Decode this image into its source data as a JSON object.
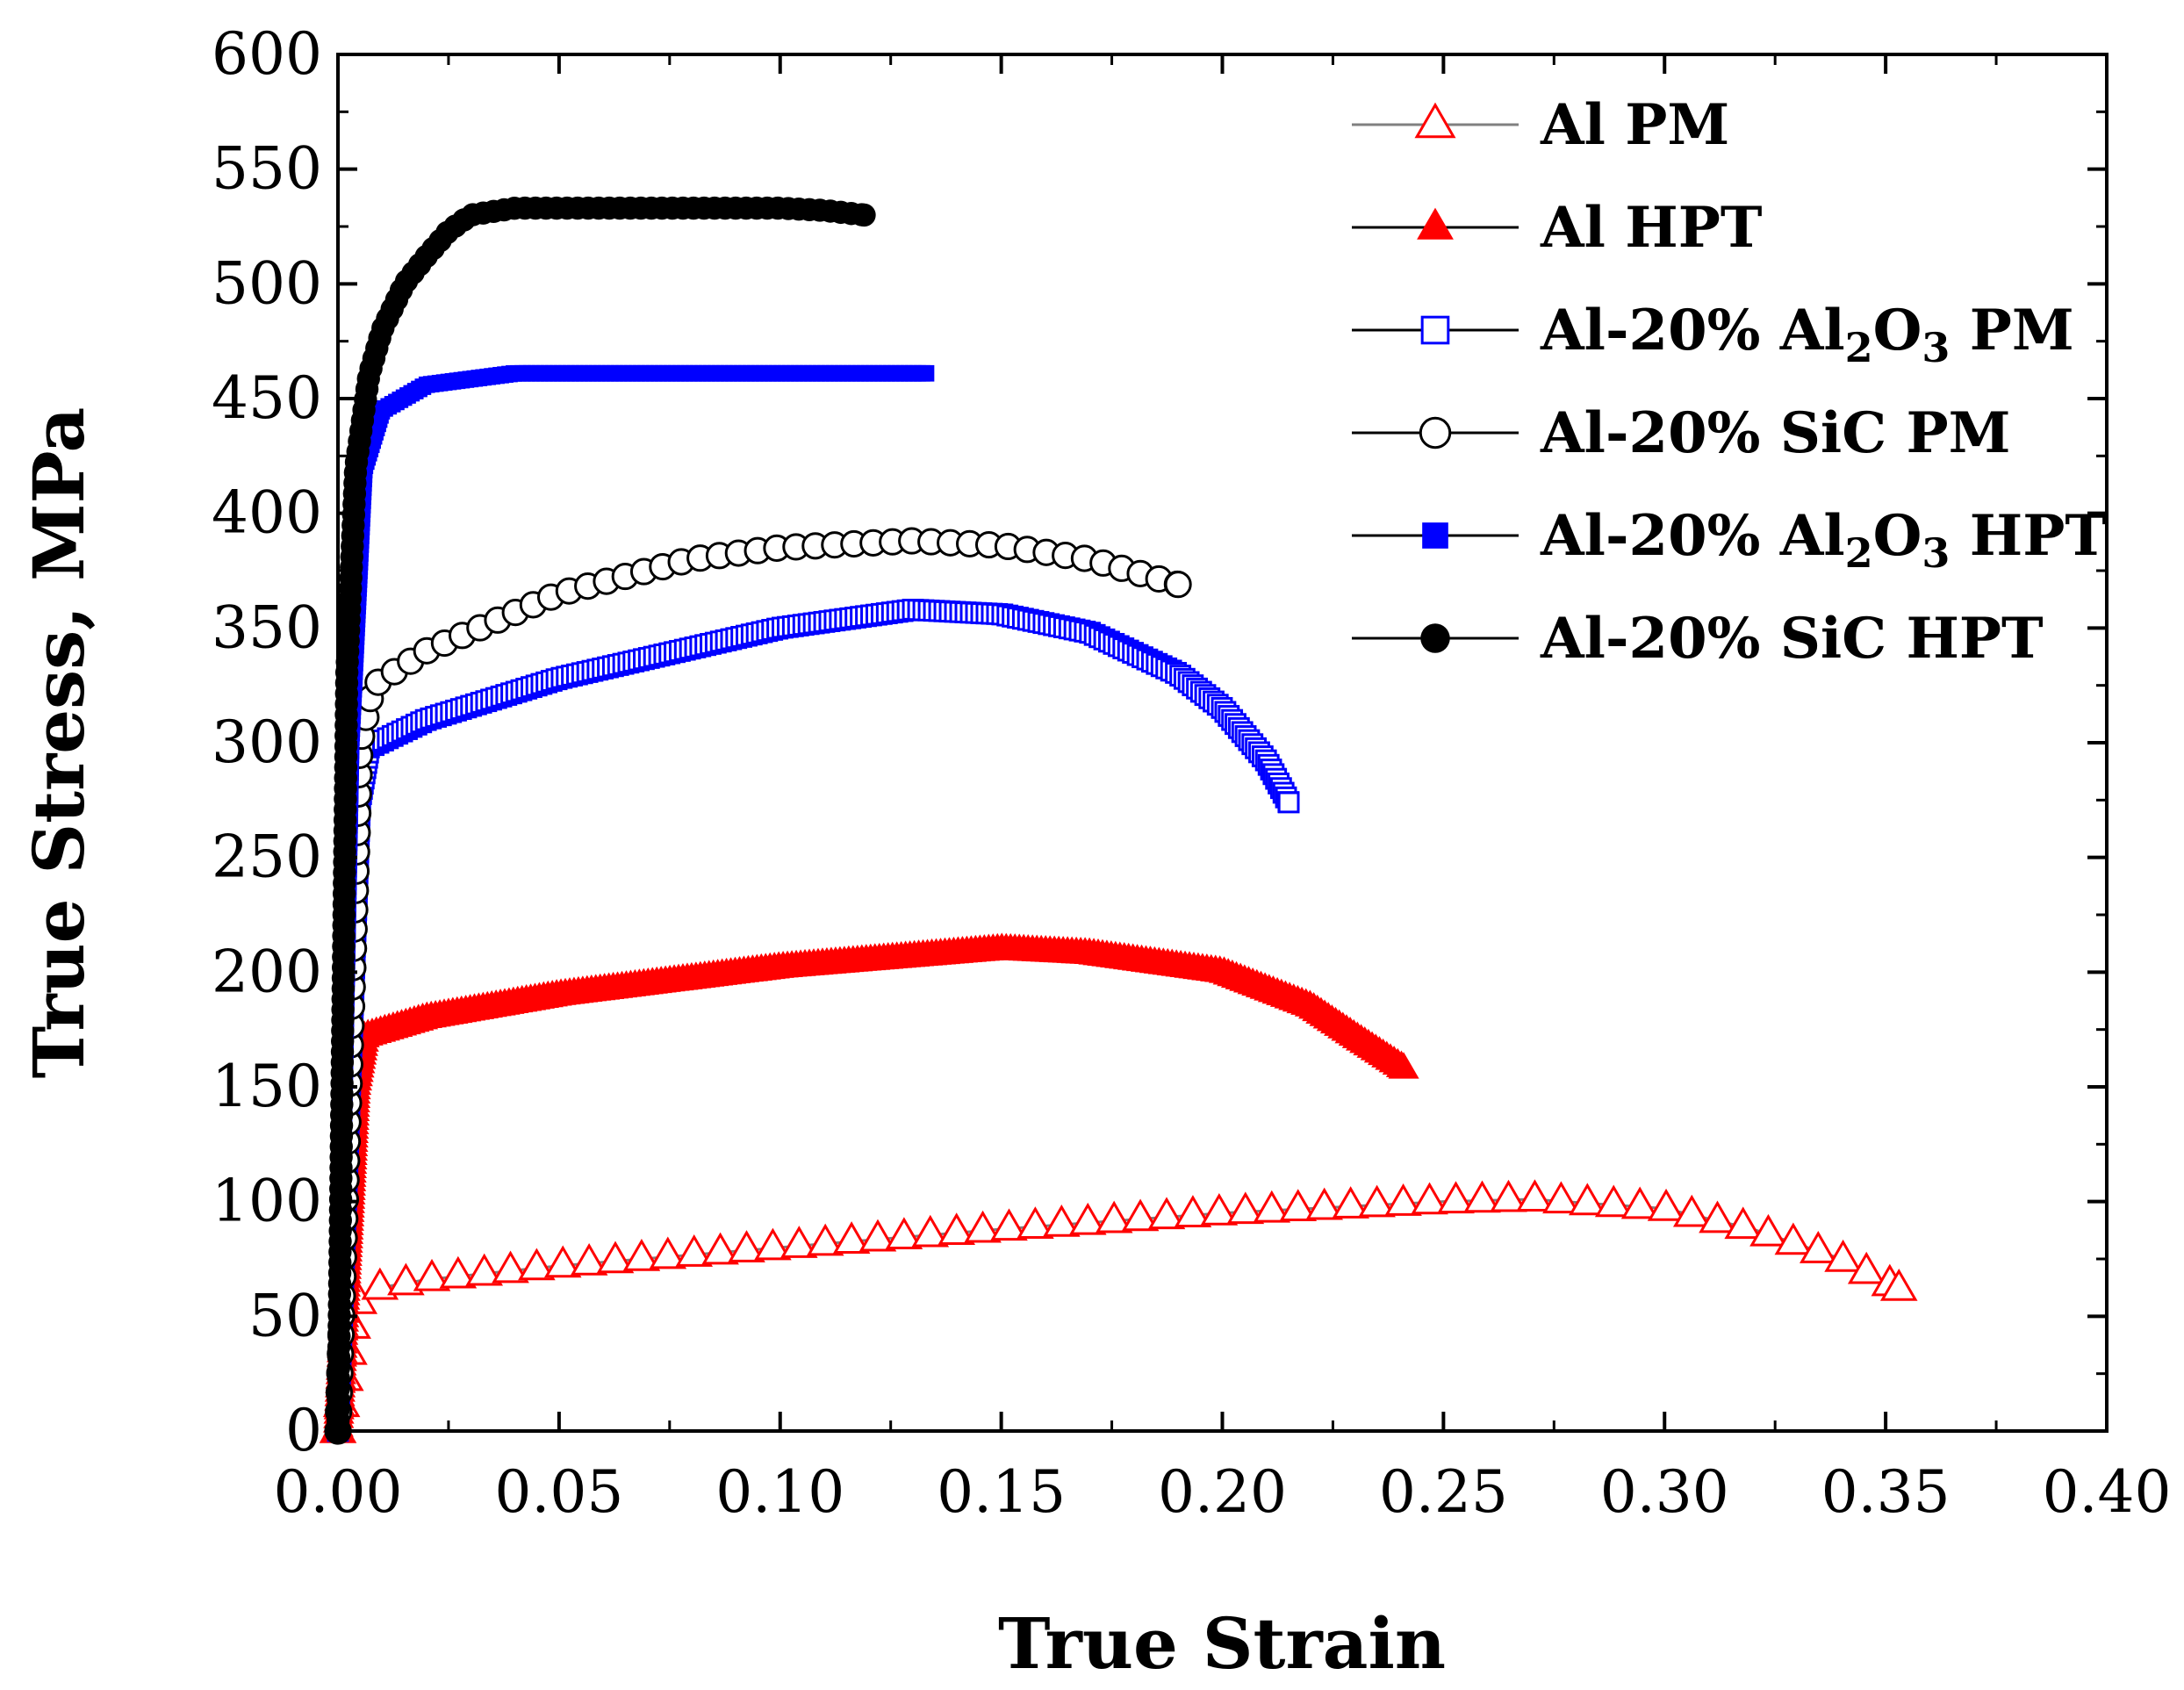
{
  "chart_data": {
    "type": "line",
    "xlabel": "True Strain",
    "ylabel": "True Stress, MPa",
    "xlim": [
      0,
      0.4
    ],
    "ylim": [
      0,
      600
    ],
    "xticks": [
      "0.00",
      "0.05",
      "0.10",
      "0.15",
      "0.20",
      "0.25",
      "0.30",
      "0.35",
      "0.40"
    ],
    "yticks": [
      "0",
      "50",
      "100",
      "150",
      "200",
      "250",
      "300",
      "350",
      "400",
      "450",
      "500",
      "550",
      "600"
    ],
    "grid": false,
    "legend_position": "top-right",
    "series": [
      {
        "name": "Al PM",
        "label_parts": [
          {
            "t": "Al PM"
          }
        ],
        "color": "#ff0000",
        "marker": "triangle-open",
        "line_color": "#808080",
        "x": [
          0,
          0.004,
          0.008,
          0.02,
          0.05,
          0.1,
          0.15,
          0.2,
          0.25,
          0.27,
          0.3,
          0.32,
          0.34,
          0.353
        ],
        "y": [
          0,
          55,
          62,
          66,
          72,
          80,
          88,
          95,
          100,
          101,
          97,
          88,
          75,
          62
        ]
      },
      {
        "name": "Al HPT",
        "label_parts": [
          {
            "t": "Al HPT"
          }
        ],
        "color": "#ff0000",
        "marker": "triangle-filled",
        "line_color": "#000000",
        "x": [
          0,
          0.004,
          0.006,
          0.02,
          0.05,
          0.1,
          0.15,
          0.17,
          0.2,
          0.22,
          0.23,
          0.241
        ],
        "y": [
          0,
          150,
          172,
          180,
          190,
          202,
          210,
          208,
          200,
          185,
          172,
          158
        ]
      },
      {
        "name": "Al-20% Al2O3 PM",
        "label_parts": [
          {
            "t": "Al-20% Al"
          },
          {
            "t": "2",
            "sub": true
          },
          {
            "t": "O"
          },
          {
            "t": "3",
            "sub": true
          },
          {
            "t": " PM"
          }
        ],
        "color": "#0000ff",
        "marker": "square-open",
        "line_color": "#000000",
        "x": [
          0,
          0.005,
          0.007,
          0.02,
          0.05,
          0.1,
          0.13,
          0.15,
          0.17,
          0.19,
          0.2,
          0.21,
          0.215
        ],
        "y": [
          0,
          275,
          298,
          310,
          328,
          350,
          358,
          356,
          348,
          330,
          315,
          292,
          274
        ]
      },
      {
        "name": "Al-20% SiC PM",
        "label_parts": [
          {
            "t": "Al-20% SiC PM"
          }
        ],
        "color": "#000000",
        "marker": "circle-open",
        "line_color": "#000000",
        "x": [
          0,
          0.005,
          0.008,
          0.02,
          0.05,
          0.08,
          0.1,
          0.13,
          0.15,
          0.17,
          0.19
        ],
        "y": [
          0,
          300,
          325,
          340,
          365,
          380,
          385,
          388,
          386,
          380,
          369
        ]
      },
      {
        "name": "Al-20% Al2O3 HPT",
        "label_parts": [
          {
            "t": "Al-20% Al"
          },
          {
            "t": "2",
            "sub": true
          },
          {
            "t": "O"
          },
          {
            "t": "3",
            "sub": true
          },
          {
            "t": " HPT"
          }
        ],
        "color": "#0000ff",
        "marker": "square-filled",
        "line_color": "#000000",
        "x": [
          0,
          0.003,
          0.006,
          0.01,
          0.02,
          0.04,
          0.08,
          0.133
        ],
        "y": [
          0,
          300,
          420,
          445,
          456,
          461,
          461,
          461
        ]
      },
      {
        "name": "Al-20% SiC HPT",
        "label_parts": [
          {
            "t": "Al-20% SiC HPT"
          }
        ],
        "color": "#000000",
        "marker": "circle-filled",
        "line_color": "#000000",
        "x": [
          0,
          0.002,
          0.004,
          0.007,
          0.01,
          0.015,
          0.02,
          0.025,
          0.03,
          0.04,
          0.06,
          0.08,
          0.1,
          0.11,
          0.119
        ],
        "y": [
          0,
          330,
          420,
          460,
          480,
          500,
          512,
          523,
          530,
          533,
          533,
          533,
          533,
          532,
          530
        ]
      }
    ]
  }
}
